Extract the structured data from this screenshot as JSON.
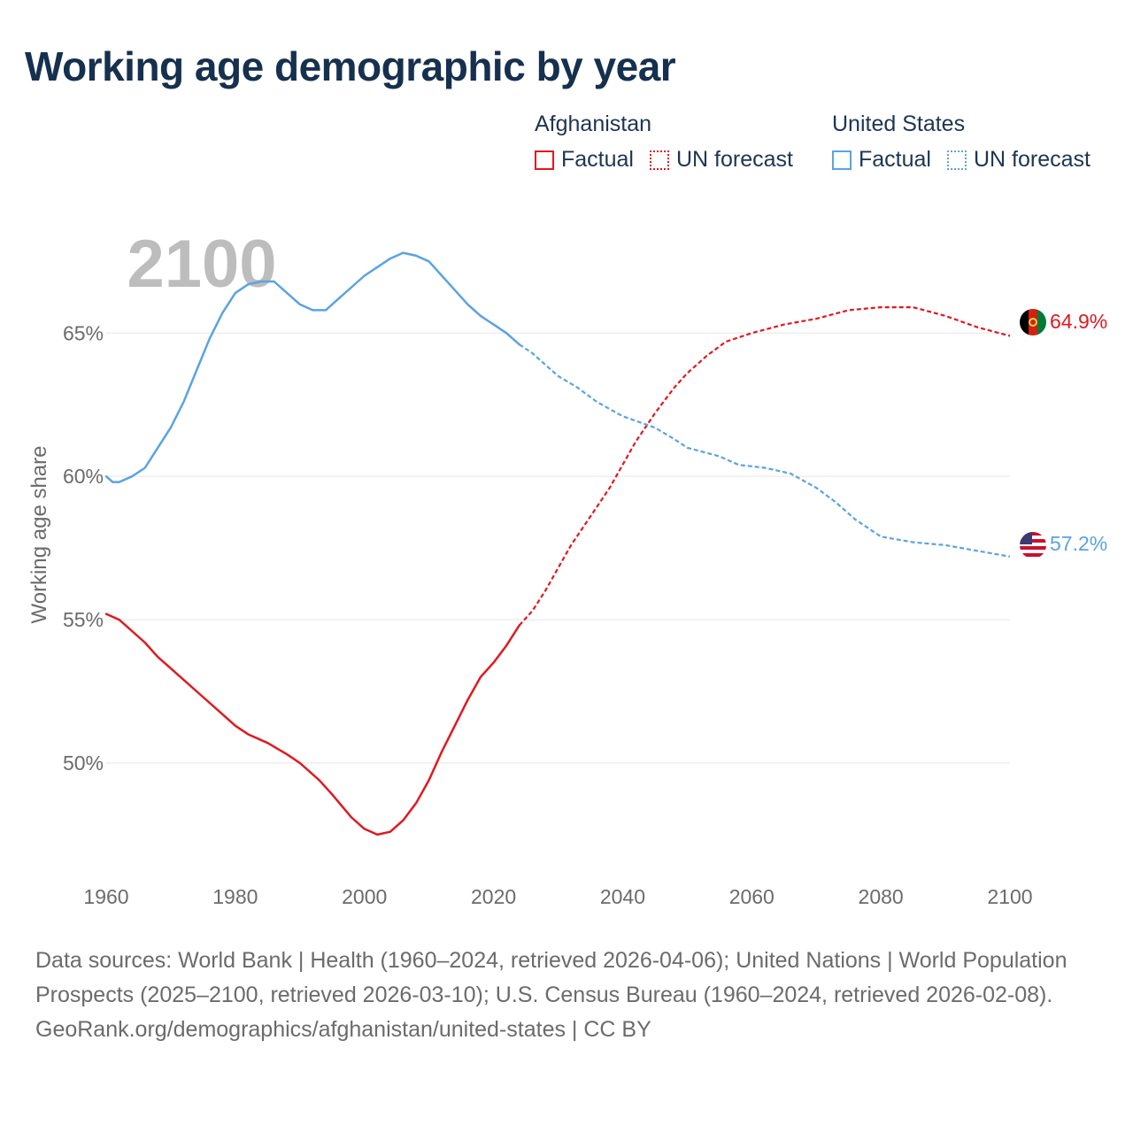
{
  "title": "Working age demographic by year",
  "legend": {
    "groups": [
      {
        "name": "Afghanistan",
        "factual": "Factual",
        "forecast": "UN forecast",
        "color": "#e0191f"
      },
      {
        "name": "United States",
        "factual": "Factual",
        "forecast": "UN forecast",
        "color": "#5aa3e2"
      }
    ]
  },
  "footer": {
    "sources": "Data sources: World Bank | Health (1960–2024, retrieved 2026-04-06); United Nations | World Population Prospects (2025–2100, retrieved 2026-03-10); U.S. Census Bureau (1960–2024, retrieved 2026-02-08).",
    "url": "GeoRank.org/demographics/afghanistan/united-states | CC BY"
  },
  "chart_data": {
    "type": "line",
    "year_label": "2100",
    "ylabel": "Working age share",
    "xlabel": "",
    "xlim": [
      1960,
      2100
    ],
    "ylim": [
      46.2,
      68.9
    ],
    "xticks": [
      1960,
      1980,
      2000,
      2020,
      2040,
      2060,
      2080,
      2100
    ],
    "xtick_labels": [
      "1960",
      "1980",
      "2000",
      "2020",
      "2040",
      "2060",
      "2080",
      "2100"
    ],
    "yticks": [
      50,
      55,
      60,
      65
    ],
    "ytick_labels": [
      "50%",
      "55%",
      "60%",
      "65%"
    ],
    "factual_end_year": 2024,
    "series": [
      {
        "name": "Afghanistan",
        "color": "#e0191f",
        "end_label": "64.9%",
        "points": [
          [
            1960,
            55.2
          ],
          [
            1962,
            55.0
          ],
          [
            1964,
            54.6
          ],
          [
            1966,
            54.2
          ],
          [
            1968,
            53.7
          ],
          [
            1970,
            53.3
          ],
          [
            1975,
            52.3
          ],
          [
            1980,
            51.3
          ],
          [
            1982,
            51.0
          ],
          [
            1985,
            50.7
          ],
          [
            1988,
            50.3
          ],
          [
            1990,
            50.0
          ],
          [
            1993,
            49.4
          ],
          [
            1995,
            48.9
          ],
          [
            1998,
            48.1
          ],
          [
            2000,
            47.7
          ],
          [
            2002,
            47.5
          ],
          [
            2004,
            47.6
          ],
          [
            2006,
            48.0
          ],
          [
            2008,
            48.6
          ],
          [
            2010,
            49.4
          ],
          [
            2012,
            50.4
          ],
          [
            2014,
            51.3
          ],
          [
            2016,
            52.2
          ],
          [
            2018,
            53.0
          ],
          [
            2020,
            53.5
          ],
          [
            2022,
            54.1
          ],
          [
            2024,
            54.8
          ],
          [
            2026,
            55.3
          ],
          [
            2028,
            56.0
          ],
          [
            2030,
            56.8
          ],
          [
            2032,
            57.6
          ],
          [
            2035,
            58.6
          ],
          [
            2038,
            59.6
          ],
          [
            2040,
            60.4
          ],
          [
            2042,
            61.2
          ],
          [
            2045,
            62.2
          ],
          [
            2048,
            63.1
          ],
          [
            2050,
            63.6
          ],
          [
            2053,
            64.2
          ],
          [
            2056,
            64.7
          ],
          [
            2060,
            65.0
          ],
          [
            2065,
            65.3
          ],
          [
            2070,
            65.5
          ],
          [
            2075,
            65.8
          ],
          [
            2080,
            65.9
          ],
          [
            2085,
            65.9
          ],
          [
            2090,
            65.6
          ],
          [
            2095,
            65.2
          ],
          [
            2100,
            64.9
          ]
        ]
      },
      {
        "name": "United States",
        "color": "#5aa3e2",
        "end_label": "57.2%",
        "points": [
          [
            1960,
            60.0
          ],
          [
            1961,
            59.8
          ],
          [
            1962,
            59.8
          ],
          [
            1964,
            60.0
          ],
          [
            1966,
            60.3
          ],
          [
            1968,
            61.0
          ],
          [
            1970,
            61.7
          ],
          [
            1972,
            62.6
          ],
          [
            1974,
            63.7
          ],
          [
            1976,
            64.8
          ],
          [
            1978,
            65.7
          ],
          [
            1980,
            66.4
          ],
          [
            1982,
            66.7
          ],
          [
            1984,
            66.8
          ],
          [
            1986,
            66.8
          ],
          [
            1988,
            66.4
          ],
          [
            1990,
            66.0
          ],
          [
            1992,
            65.8
          ],
          [
            1994,
            65.8
          ],
          [
            1996,
            66.2
          ],
          [
            1998,
            66.6
          ],
          [
            2000,
            67.0
          ],
          [
            2002,
            67.3
          ],
          [
            2004,
            67.6
          ],
          [
            2006,
            67.8
          ],
          [
            2008,
            67.7
          ],
          [
            2010,
            67.5
          ],
          [
            2012,
            67.0
          ],
          [
            2014,
            66.5
          ],
          [
            2016,
            66.0
          ],
          [
            2018,
            65.6
          ],
          [
            2020,
            65.3
          ],
          [
            2022,
            65.0
          ],
          [
            2024,
            64.6
          ],
          [
            2026,
            64.3
          ],
          [
            2028,
            63.9
          ],
          [
            2030,
            63.5
          ],
          [
            2033,
            63.1
          ],
          [
            2036,
            62.6
          ],
          [
            2040,
            62.1
          ],
          [
            2045,
            61.7
          ],
          [
            2048,
            61.3
          ],
          [
            2050,
            61.0
          ],
          [
            2055,
            60.7
          ],
          [
            2058,
            60.4
          ],
          [
            2062,
            60.3
          ],
          [
            2066,
            60.1
          ],
          [
            2070,
            59.6
          ],
          [
            2073,
            59.1
          ],
          [
            2076,
            58.5
          ],
          [
            2080,
            57.9
          ],
          [
            2085,
            57.7
          ],
          [
            2090,
            57.6
          ],
          [
            2095,
            57.4
          ],
          [
            2100,
            57.2
          ]
        ]
      }
    ]
  }
}
